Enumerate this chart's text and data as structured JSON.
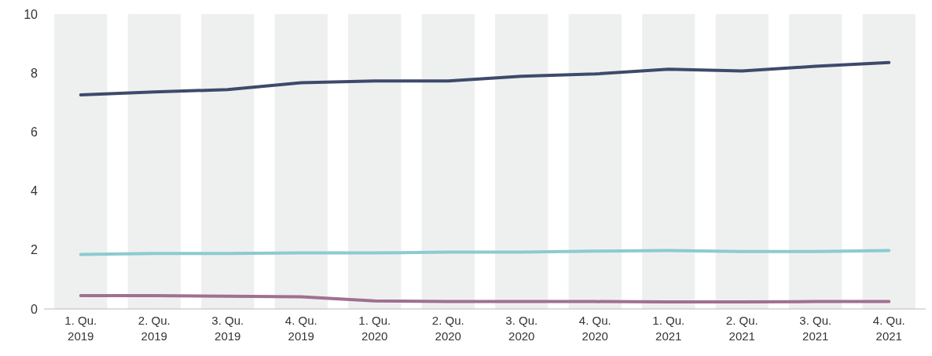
{
  "chart_data": {
    "type": "line",
    "categories": [
      "1. Qu. 2019",
      "2. Qu. 2019",
      "3. Qu. 2019",
      "4. Qu. 2019",
      "1. Qu. 2020",
      "2. Qu. 2020",
      "3. Qu. 2020",
      "4. Qu. 2020",
      "1. Qu. 2021",
      "2. Qu. 2021",
      "3. Qu. 2021",
      "4. Qu. 2021"
    ],
    "series": [
      {
        "color": "#3d4a6b",
        "values": [
          7.26,
          7.36,
          7.44,
          7.67,
          7.73,
          7.73,
          7.89,
          7.97,
          8.13,
          8.07,
          8.23,
          8.36
        ]
      },
      {
        "color": "#8ccbcf",
        "values": [
          1.85,
          1.88,
          1.88,
          1.9,
          1.9,
          1.93,
          1.93,
          1.96,
          1.98,
          1.95,
          1.95,
          1.98
        ]
      },
      {
        "color": "#a07090",
        "values": [
          0.45,
          0.45,
          0.43,
          0.41,
          0.27,
          0.25,
          0.25,
          0.25,
          0.24,
          0.24,
          0.25,
          0.25
        ]
      }
    ],
    "ylim": [
      0,
      10
    ],
    "yticks": [
      0,
      2,
      4,
      6,
      8,
      10
    ],
    "grid": false,
    "marker": "none",
    "line_style": "solid",
    "bands": [
      {
        "axis": "x",
        "from": "1. Qu. 2019",
        "to": "1. Qu. 2019",
        "color": "#eef0ef"
      },
      {
        "axis": "x",
        "from": "2. Qu. 2019",
        "to": "2. Qu. 2019",
        "color": "#eef0ef"
      },
      {
        "axis": "x",
        "from": "3. Qu. 2019",
        "to": "3. Qu. 2019",
        "color": "#eef0ef"
      },
      {
        "axis": "x",
        "from": "4. Qu. 2019",
        "to": "4. Qu. 2019",
        "color": "#eef0ef"
      },
      {
        "axis": "x",
        "from": "1. Qu. 2020",
        "to": "1. Qu. 2020",
        "color": "#eef0ef"
      },
      {
        "axis": "x",
        "from": "2. Qu. 2020",
        "to": "2. Qu. 2020",
        "color": "#eef0ef"
      },
      {
        "axis": "x",
        "from": "3. Qu. 2020",
        "to": "3. Qu. 2020",
        "color": "#eef0ef"
      },
      {
        "axis": "x",
        "from": "4. Qu. 2020",
        "to": "4. Qu. 2020",
        "color": "#eef0ef"
      },
      {
        "axis": "x",
        "from": "1. Qu. 2021",
        "to": "1. Qu. 2021",
        "color": "#eef0ef"
      },
      {
        "axis": "x",
        "from": "2. Qu. 2021",
        "to": "2. Qu. 2021",
        "color": "#eef0ef"
      },
      {
        "axis": "x",
        "from": "3. Qu. 2021",
        "to": "3. Qu. 2021",
        "color": "#eef0ef"
      },
      {
        "axis": "x",
        "from": "4. Qu. 2021",
        "to": "4. Qu. 2021",
        "color": "#eef0ef"
      }
    ]
  }
}
